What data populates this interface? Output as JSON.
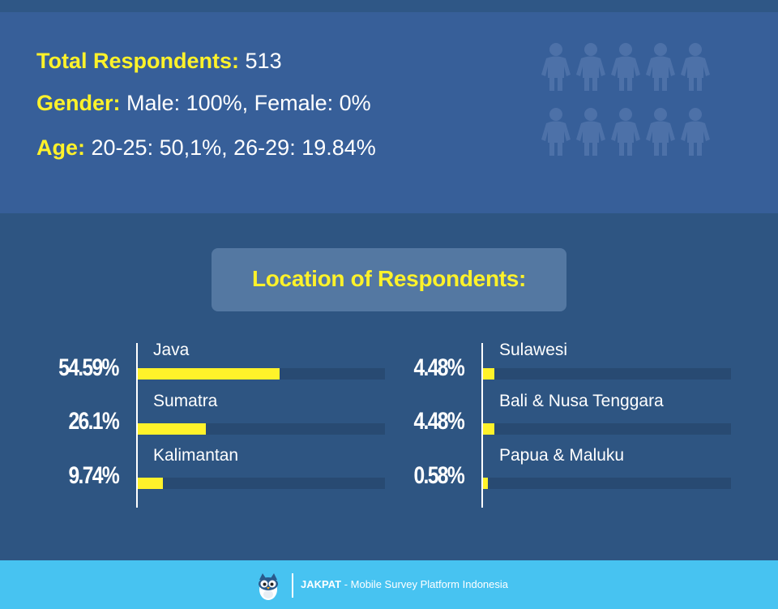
{
  "stats": {
    "total_label": "Total Respondents:",
    "total_value": "513",
    "gender_label": "Gender:",
    "gender_value": "Male: 100%, Female: 0%",
    "age_label": "Age:",
    "age_value": "20-25: 50,1%, 26-29: 19.84%",
    "people_icon": "person-icon",
    "people_count": 10
  },
  "chart_data": {
    "type": "bar",
    "title": "Location of Respondents:",
    "categories": [
      "Java",
      "Sumatra",
      "Kalimantan",
      "Sulawesi",
      "Bali & Nusa Tenggara",
      "Papua & Maluku"
    ],
    "values": [
      54.59,
      26.1,
      9.74,
      4.48,
      4.48,
      0.58
    ],
    "value_labels": [
      "54.59%",
      "26.1%",
      "9.74%",
      "4.48%",
      "4.48%",
      "0.58%"
    ],
    "xlim": [
      0,
      100
    ],
    "bar_color": "#fff22a",
    "track_color": "#284a72"
  },
  "footer": {
    "brand": "JAKPAT",
    "tagline": " - Mobile Survey Platform Indonesia",
    "logo_icon": "owl-logo-icon"
  },
  "colors": {
    "accent": "#fff22a",
    "header_bg": "#375f99",
    "main_bg": "#2e5582",
    "footer_bg": "#47c3f1"
  }
}
